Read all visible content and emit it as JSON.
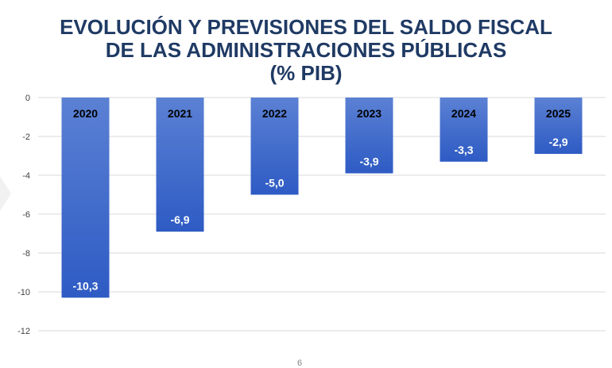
{
  "title": {
    "line1": "EVOLUCIÓN Y PREVISIONES DEL SALDO FISCAL",
    "line2": "DE LAS ADMINISTRACIONES PÚBLICAS",
    "line3": "(% PIB)"
  },
  "page_number": "6",
  "colors": {
    "bar_top": "#5b81d4",
    "bar_bottom": "#2e5bc4",
    "grid": "#d9d9d9",
    "title": "#1f3a64",
    "axis_text": "#404040"
  },
  "chart_data": {
    "type": "bar",
    "categories": [
      "2020",
      "2021",
      "2022",
      "2023",
      "2024",
      "2025"
    ],
    "values": [
      -10.3,
      -6.9,
      -5.0,
      -3.9,
      -3.3,
      -2.9
    ],
    "value_labels": [
      "-10,3",
      "-6,9",
      "-5,0",
      "-3,9",
      "-3,3",
      "-2,9"
    ],
    "ylim": [
      -12,
      0
    ],
    "yticks": [
      0,
      -2,
      -4,
      -6,
      -8,
      -10,
      -12
    ],
    "ytick_labels": [
      "0",
      "-2",
      "-4",
      "-6",
      "-8",
      "-10",
      "-12"
    ],
    "grid": true,
    "category_labels_position": "inside-top-of-bars"
  }
}
